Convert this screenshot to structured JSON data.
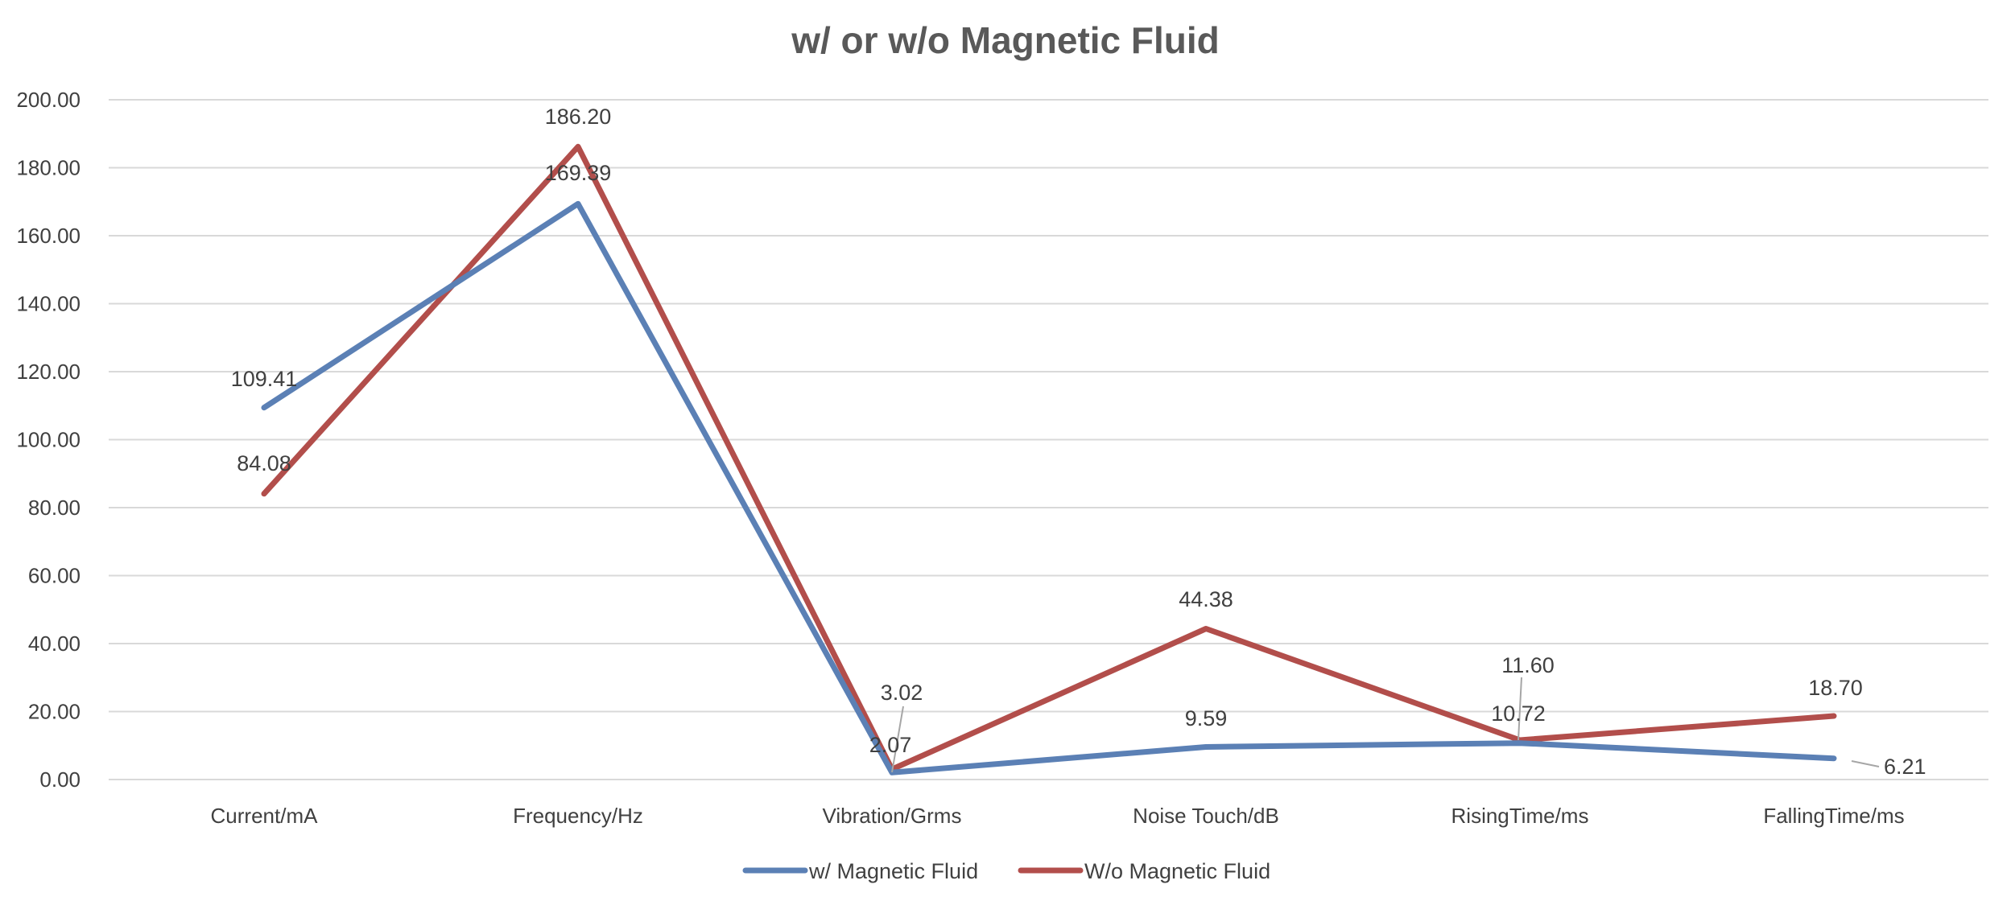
{
  "chart_data": {
    "type": "line",
    "title": "w/ or w/o Magnetic Fluid",
    "categories": [
      "Current/mA",
      "Frequency/Hz",
      "Vibration/Grms",
      "Noise Touch/dB",
      "RisingTime/ms",
      "FallingTime/ms"
    ],
    "series": [
      {
        "name": "w/ Magnetic Fluid",
        "color": "#5b80b5",
        "values": [
          109.41,
          169.39,
          2.07,
          9.59,
          10.72,
          6.21
        ],
        "labels": [
          "109.41",
          "169.39",
          "2.07",
          "9.59",
          "10.72",
          "6.21"
        ]
      },
      {
        "name": "W/o Magnetic Fluid",
        "color": "#b24e4b",
        "values": [
          84.08,
          186.2,
          3.02,
          44.38,
          11.6,
          18.7
        ],
        "labels": [
          "84.08",
          "186.20",
          "3.02",
          "44.38",
          "11.60",
          "18.70"
        ]
      }
    ],
    "ylim": [
      0,
      200
    ],
    "yticks": [
      "0.00",
      "20.00",
      "40.00",
      "60.00",
      "80.00",
      "100.00",
      "120.00",
      "140.00",
      "160.00",
      "180.00",
      "200.00"
    ],
    "xlabel": "",
    "ylabel": "",
    "grid": true,
    "legend": "bottom"
  }
}
